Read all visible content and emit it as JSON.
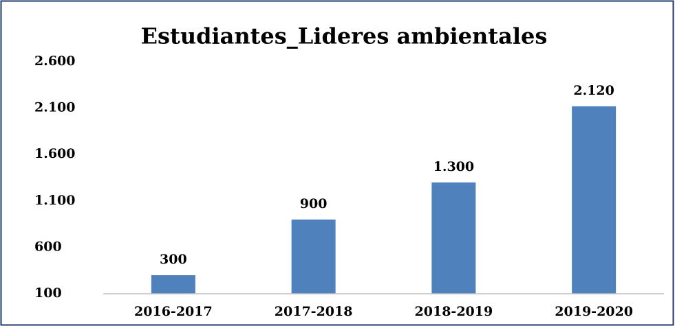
{
  "chart_data": {
    "type": "bar",
    "title": "Estudiantes_Lideres ambientales",
    "categories": [
      "2016-2017",
      "2017-2018",
      "2018-2019",
      "2019-2020"
    ],
    "values": [
      300,
      900,
      1300,
      2120
    ],
    "value_labels": [
      "300",
      "900",
      "1.300",
      "2.120"
    ],
    "color": "#4f81bd",
    "ylim": [
      100,
      2600
    ],
    "yticks": [
      100,
      600,
      {
        "value": 1100,
        "label": "1.100"
      },
      {
        "value": 1600,
        "label": "1.600"
      },
      {
        "value": 2100,
        "label": "2.100"
      },
      {
        "value": 2600,
        "label": "2.600"
      }
    ],
    "grid": false
  }
}
